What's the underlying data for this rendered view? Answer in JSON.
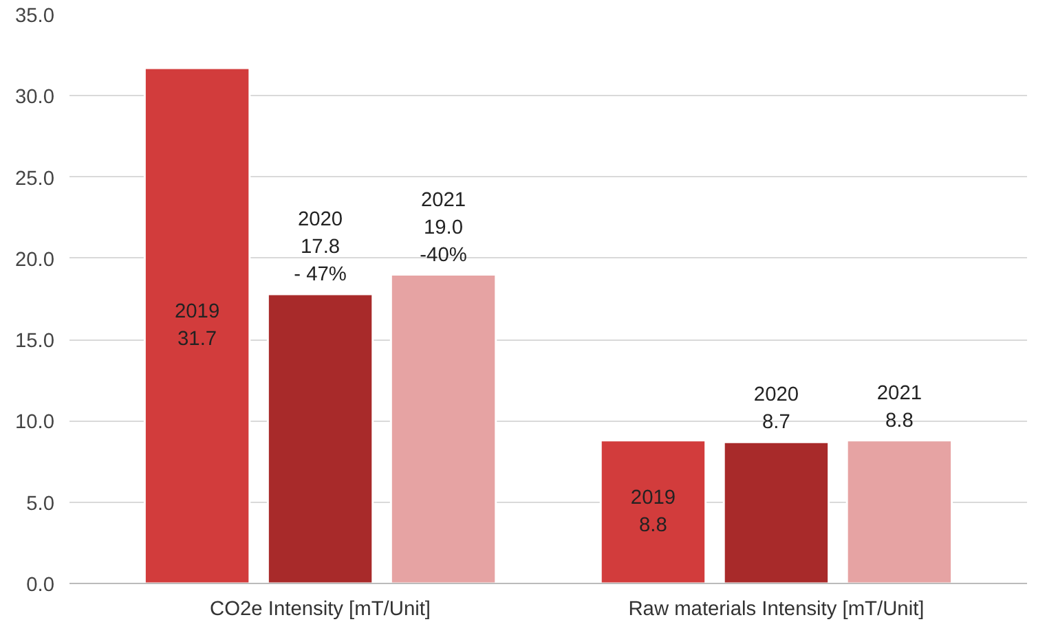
{
  "chart_data": {
    "type": "bar",
    "categories": [
      "CO2e Intensity [mT/Unit]",
      "Raw materials Intensity [mT/Unit]"
    ],
    "series": [
      {
        "color": "#d23c3c",
        "values": [
          31.7,
          8.8
        ],
        "value_labels": [
          "2019\n31.7",
          "2019\n8.8"
        ]
      },
      {
        "color": "#a82a2a",
        "values": [
          17.8,
          8.7
        ],
        "value_labels": [
          "2020\n17.8\n- 47%",
          "2020\n8.7"
        ]
      },
      {
        "color": "#e6a3a3",
        "values": [
          19.0,
          8.8
        ],
        "value_labels": [
          "2021\n19.0\n-40%",
          "2021\n8.8"
        ]
      }
    ],
    "ylim": [
      0,
      35
    ],
    "yticks": [
      {
        "value": 0,
        "label": "0.0"
      },
      {
        "value": 5,
        "label": "5.0"
      },
      {
        "value": 10,
        "label": "10.0"
      },
      {
        "value": 15,
        "label": "15.0"
      },
      {
        "value": 20,
        "label": "20.0"
      },
      {
        "value": 25,
        "label": "25.0"
      },
      {
        "value": 30,
        "label": "30.0"
      },
      {
        "value": 35,
        "label": "35.0"
      }
    ],
    "grid": "y"
  }
}
